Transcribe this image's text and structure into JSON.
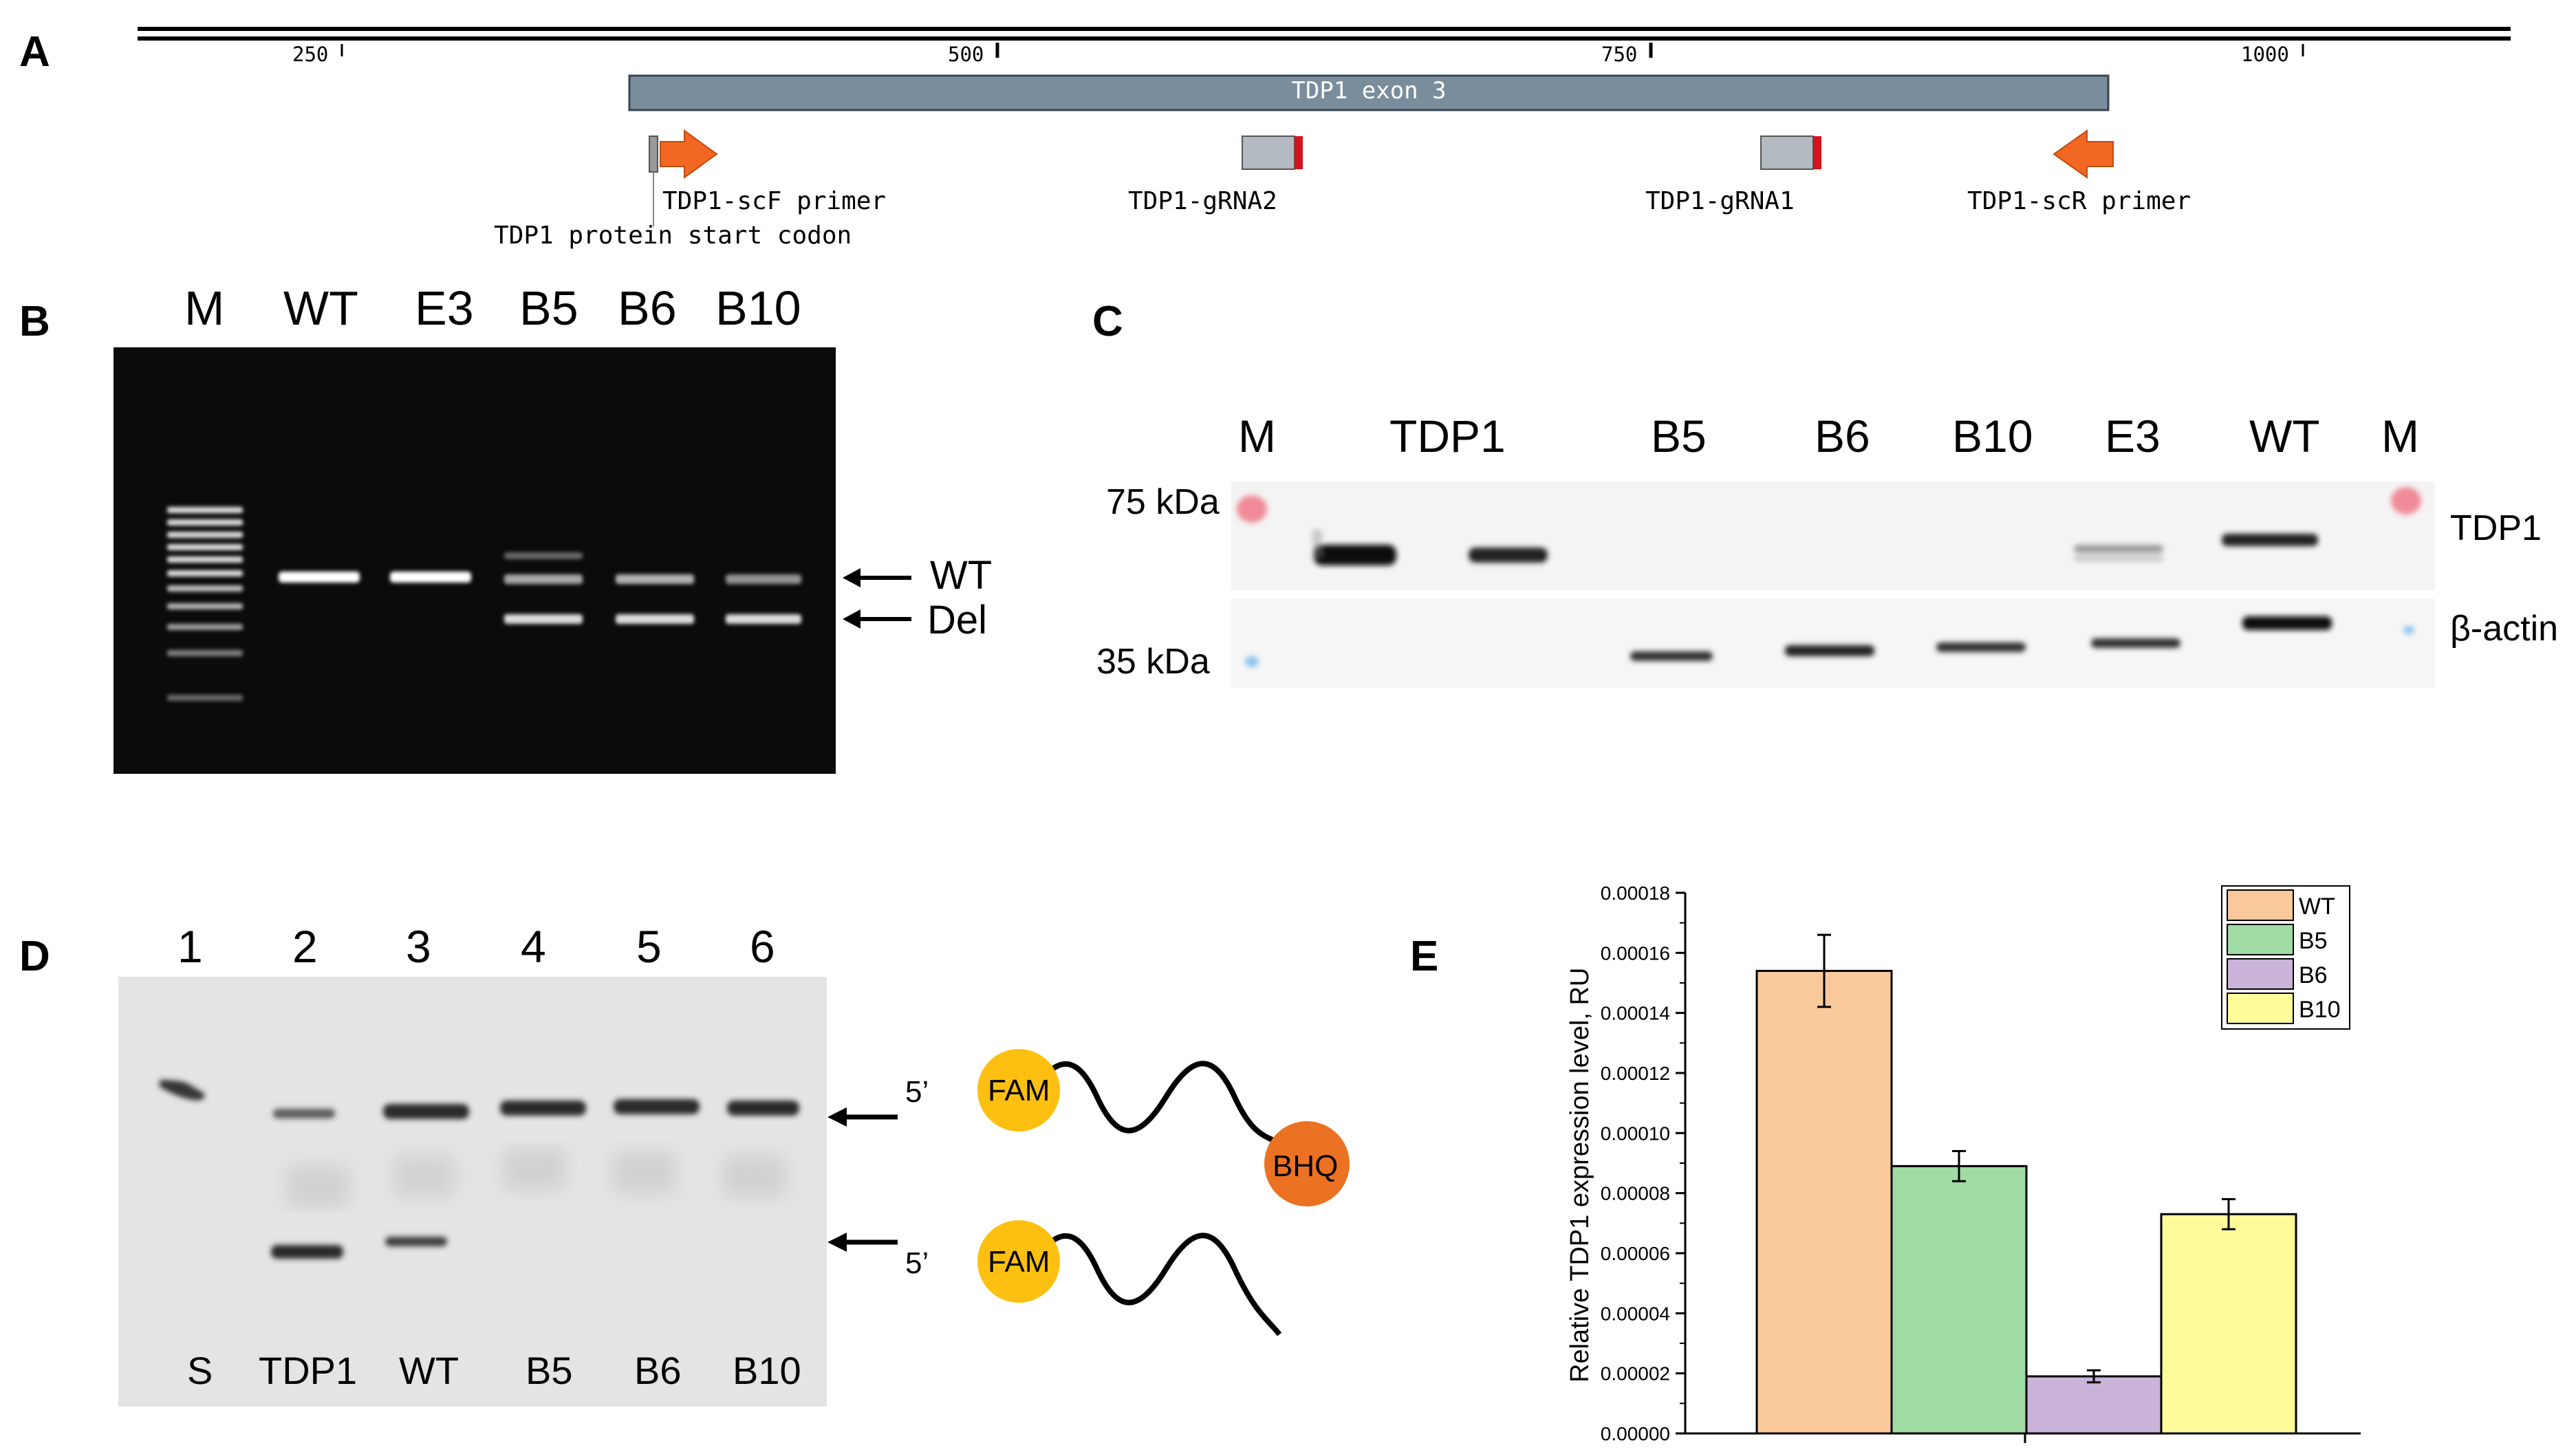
{
  "panels": {
    "a": "A",
    "b": "B",
    "c": "C",
    "d": "D",
    "e": "E"
  },
  "panel_a": {
    "ticks": [
      "250",
      "500",
      "750",
      "1000"
    ],
    "exon_label": "TDP1 exon 3",
    "features": {
      "scf_primer": "TDP1-scF primer",
      "start_codon": "TDP1 protein start codon",
      "grna2": "TDP1-gRNA2",
      "grna1": "TDP1-gRNA1",
      "scr_primer": "TDP1-scR primer"
    }
  },
  "panel_b": {
    "lanes": [
      "M",
      "WT",
      "E3",
      "B5",
      "B6",
      "B10"
    ],
    "arrows": {
      "wt": "WT",
      "del": "Del"
    }
  },
  "panel_c": {
    "lanes": [
      "M",
      "TDP1",
      "B5",
      "B6",
      "B10",
      "E3",
      "WT",
      "M"
    ],
    "markers": {
      "top": "75 kDa",
      "bottom": "35 kDa"
    },
    "rows": {
      "top": "TDP1",
      "bottom": "β-actin"
    }
  },
  "panel_d": {
    "numbers": [
      "1",
      "2",
      "3",
      "4",
      "5",
      "6"
    ],
    "lanes": [
      "S",
      "TDP1",
      "WT",
      "B5",
      "B6",
      "B10"
    ],
    "probe": {
      "five_prime": "5’",
      "fam": "FAM",
      "bhq": "BHQ"
    }
  },
  "chart_data": {
    "type": "bar",
    "categories": [
      "WT",
      "B5",
      "B6",
      "B10"
    ],
    "values": [
      0.000154,
      8.9e-05,
      1.9e-05,
      7.3e-05
    ],
    "errors": [
      1.2e-05,
      5e-06,
      2e-06,
      5e-06
    ],
    "colors": [
      "#f9c89b",
      "#a0dba3",
      "#c9b3d9",
      "#fdfb9a"
    ],
    "title": "",
    "xlabel": "",
    "ylabel": "Relative TDP1 expression level, RU",
    "ylim": [
      0,
      0.00018
    ],
    "yticks": [
      "0.00000",
      "0.00002",
      "0.00004",
      "0.00006",
      "0.00008",
      "0.00010",
      "0.00012",
      "0.00014",
      "0.00016",
      "0.00018"
    ],
    "legend": [
      "WT",
      "B5",
      "B6",
      "B10"
    ],
    "legend_position": "top-right",
    "grid": false
  }
}
